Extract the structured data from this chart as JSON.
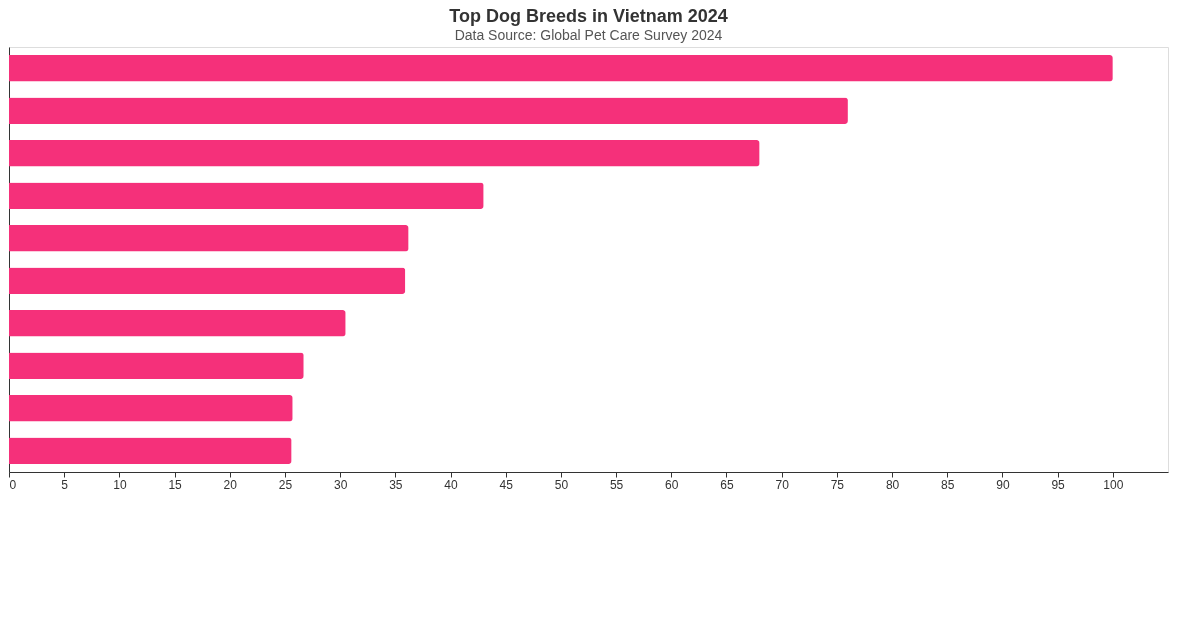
{
  "chart_data": {
    "type": "bar",
    "orientation": "horizontal",
    "title": "Top Dog Breeds in Vietnam 2024",
    "subtitle": "Data Source: Global Pet Care Survey 2024",
    "categories": [
      null,
      null,
      null,
      null,
      null,
      null,
      null,
      null,
      null,
      null
    ],
    "values": [
      100,
      76,
      68,
      43,
      36.2,
      35.9,
      30.5,
      26.7,
      25.7,
      25.6
    ],
    "color": "#f5307a",
    "xlim": [
      0,
      105
    ],
    "xticks": [
      0,
      5,
      10,
      15,
      20,
      25,
      30,
      35,
      40,
      45,
      50,
      55,
      60,
      65,
      70,
      75,
      80,
      85,
      90,
      95,
      100
    ],
    "grid": false,
    "tick_labels": "x"
  }
}
